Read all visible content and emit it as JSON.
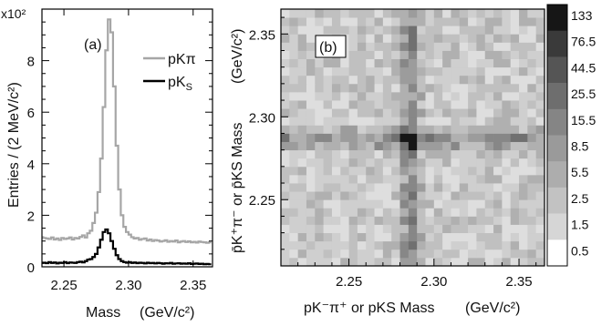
{
  "chart_data": [
    {
      "panel": "(a)",
      "type": "line",
      "ylabel": "Entries / (2 MeV/c²)",
      "y_multiplier": "x10²",
      "xlabel": "Mass",
      "xunit": "(GeV/c²)",
      "xlim": [
        2.233,
        2.365
      ],
      "ylim": [
        0,
        10
      ],
      "xticks": [
        2.25,
        2.3,
        2.35
      ],
      "yticks": [
        0,
        2,
        4,
        6,
        8
      ],
      "legend": [
        {
          "label": "pKπ",
          "color": "#a6a6a6"
        },
        {
          "label": "pK",
          "sub": "S",
          "color": "#000000"
        }
      ],
      "bin_width": 0.002,
      "series": [
        {
          "name": "pKπ",
          "color": "#a6a6a6",
          "x": [
            2.233,
            2.235,
            2.237,
            2.239,
            2.241,
            2.243,
            2.245,
            2.247,
            2.249,
            2.251,
            2.253,
            2.255,
            2.257,
            2.259,
            2.261,
            2.263,
            2.265,
            2.267,
            2.269,
            2.271,
            2.273,
            2.275,
            2.277,
            2.279,
            2.281,
            2.283,
            2.285,
            2.287,
            2.289,
            2.291,
            2.293,
            2.295,
            2.297,
            2.299,
            2.301,
            2.303,
            2.305,
            2.307,
            2.309,
            2.311,
            2.313,
            2.315,
            2.317,
            2.319,
            2.321,
            2.323,
            2.325,
            2.327,
            2.329,
            2.331,
            2.333,
            2.335,
            2.337,
            2.339,
            2.341,
            2.343,
            2.345,
            2.347,
            2.349,
            2.351,
            2.353,
            2.355,
            2.357,
            2.359,
            2.361,
            2.363
          ],
          "values": [
            1.15,
            1.12,
            1.1,
            1.08,
            1.14,
            1.06,
            1.1,
            1.04,
            1.12,
            1.08,
            1.1,
            1.14,
            1.06,
            1.12,
            1.1,
            1.16,
            1.22,
            1.14,
            1.3,
            1.4,
            1.7,
            2.1,
            2.9,
            4.2,
            6.2,
            8.4,
            9.6,
            9.1,
            7.0,
            4.7,
            3.0,
            2.0,
            1.55,
            1.35,
            1.25,
            1.15,
            1.1,
            1.12,
            1.05,
            1.08,
            1.1,
            1.02,
            1.06,
            1.0,
            1.04,
            1.02,
            0.98,
            1.0,
            1.03,
            0.97,
            1.0,
            0.98,
            1.02,
            0.95,
            0.98,
            1.0,
            0.96,
            0.99,
            0.95,
            0.97,
            0.94,
            0.98,
            0.96,
            0.95,
            0.93,
            0.95
          ]
        },
        {
          "name": "pKS",
          "color": "#000000",
          "x": [
            2.233,
            2.235,
            2.237,
            2.239,
            2.241,
            2.243,
            2.245,
            2.247,
            2.249,
            2.251,
            2.253,
            2.255,
            2.257,
            2.259,
            2.261,
            2.263,
            2.265,
            2.267,
            2.269,
            2.271,
            2.273,
            2.275,
            2.277,
            2.279,
            2.281,
            2.283,
            2.285,
            2.287,
            2.289,
            2.291,
            2.293,
            2.295,
            2.297,
            2.299,
            2.301,
            2.303,
            2.305,
            2.307,
            2.309,
            2.311,
            2.313,
            2.315,
            2.317,
            2.319,
            2.321,
            2.323,
            2.325,
            2.327,
            2.329,
            2.331,
            2.333,
            2.335,
            2.337,
            2.339,
            2.341,
            2.343,
            2.345,
            2.347,
            2.349,
            2.351,
            2.353,
            2.355,
            2.357,
            2.359,
            2.361,
            2.363
          ],
          "values": [
            0.15,
            0.16,
            0.14,
            0.18,
            0.15,
            0.17,
            0.13,
            0.16,
            0.15,
            0.18,
            0.14,
            0.17,
            0.16,
            0.15,
            0.18,
            0.2,
            0.17,
            0.22,
            0.28,
            0.3,
            0.38,
            0.5,
            0.75,
            1.05,
            1.35,
            1.45,
            1.3,
            1.0,
            0.7,
            0.45,
            0.3,
            0.22,
            0.18,
            0.16,
            0.18,
            0.15,
            0.17,
            0.14,
            0.16,
            0.15,
            0.13,
            0.16,
            0.14,
            0.15,
            0.13,
            0.15,
            0.14,
            0.12,
            0.14,
            0.13,
            0.15,
            0.12,
            0.13,
            0.14,
            0.12,
            0.13,
            0.12,
            0.14,
            0.11,
            0.12,
            0.13,
            0.11,
            0.12,
            0.1,
            0.11,
            0.1
          ]
        }
      ]
    },
    {
      "panel": "(b)",
      "type": "heatmap",
      "xlabel": "pK⁻π⁺ or pKS Mass",
      "xunit": "(GeV/c²)",
      "ylabel": "p̄K⁺π⁻ or p̄KS Mass",
      "yunit": "(GeV/c²)",
      "xlim": [
        2.21,
        2.365
      ],
      "ylim": [
        2.21,
        2.365
      ],
      "xticks": [
        2.25,
        2.3,
        2.35
      ],
      "yticks": [
        2.25,
        2.3,
        2.35
      ],
      "colorbar_labels": [
        "133",
        "76.5",
        "44.5",
        "25.5",
        "15.5",
        "8.5",
        "5.5",
        "2.5",
        "1.5",
        "0.5"
      ],
      "peak_center": [
        2.286,
        2.286
      ],
      "bins_per_axis": 31,
      "noise_seed": 7
    }
  ]
}
